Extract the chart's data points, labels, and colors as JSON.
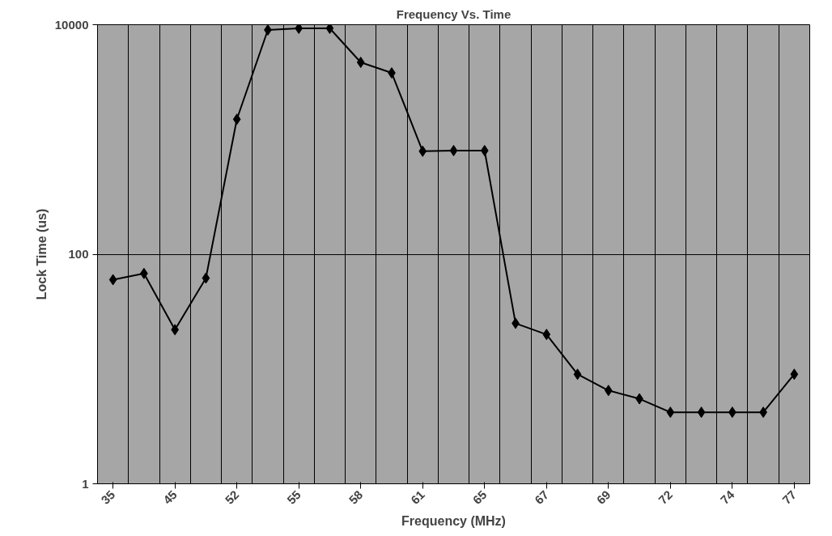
{
  "chart_data": {
    "type": "line",
    "title": "Frequency Vs. Time",
    "xlabel": "Frequency (MHz)",
    "ylabel": "Lock Time (us)",
    "categories": [
      "35",
      null,
      "45",
      null,
      "52",
      null,
      "55",
      null,
      "58",
      null,
      "61",
      null,
      "65",
      null,
      "67",
      null,
      "69",
      null,
      "72",
      null,
      "74",
      null,
      "77"
    ],
    "series": [
      {
        "color": "#000000",
        "values": [
          60,
          68,
          22,
          62,
          1500,
          9000,
          9300,
          9300,
          4700,
          3800,
          790,
          800,
          800,
          25,
          20,
          9,
          6.5,
          5.5,
          4.2,
          4.2,
          4.2,
          4.2,
          9
        ]
      }
    ],
    "log": "y",
    "ylim": [
      1,
      10000
    ],
    "yticks": [
      1,
      100,
      10000
    ],
    "grid": true,
    "marker": "diamond",
    "line_style": "solid"
  }
}
